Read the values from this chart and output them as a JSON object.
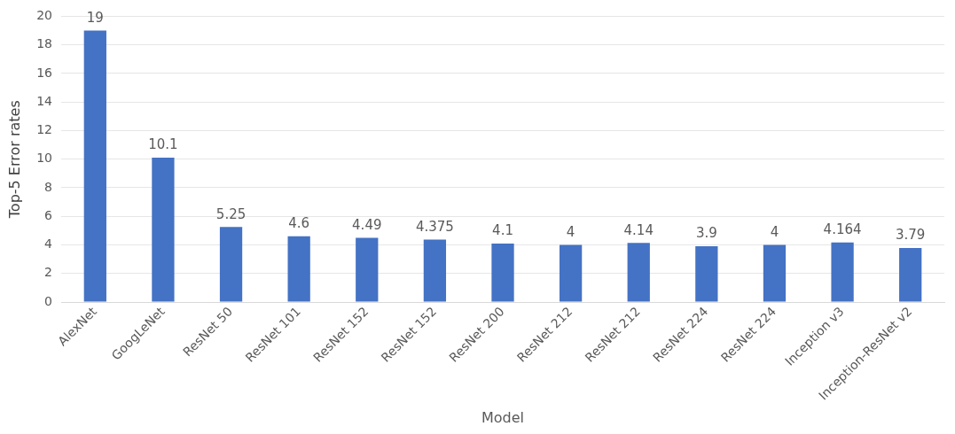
{
  "chart_data": {
    "type": "bar",
    "xlabel": "Model",
    "ylabel": "Top-5 Error rates",
    "categories": [
      "AlexNet",
      "GoogLeNet",
      "ResNet 50",
      "ResNet 101",
      "ResNet 152",
      "ResNet 152",
      "ResNet 200",
      "ResNet 212",
      "ResNet 212",
      "ResNet 224",
      "ResNet 224",
      "Inception v3",
      "Inception-ResNet v2"
    ],
    "values": [
      19,
      10.1,
      5.25,
      4.6,
      4.49,
      4.375,
      4.1,
      4,
      4.14,
      3.9,
      4,
      4.164,
      3.79
    ],
    "color": "#4472c4",
    "ylim": [
      0,
      20
    ],
    "yticks": [
      0,
      2,
      4,
      6,
      8,
      10,
      12,
      14,
      16,
      18,
      20
    ],
    "grid": "y",
    "data_labels": true
  }
}
